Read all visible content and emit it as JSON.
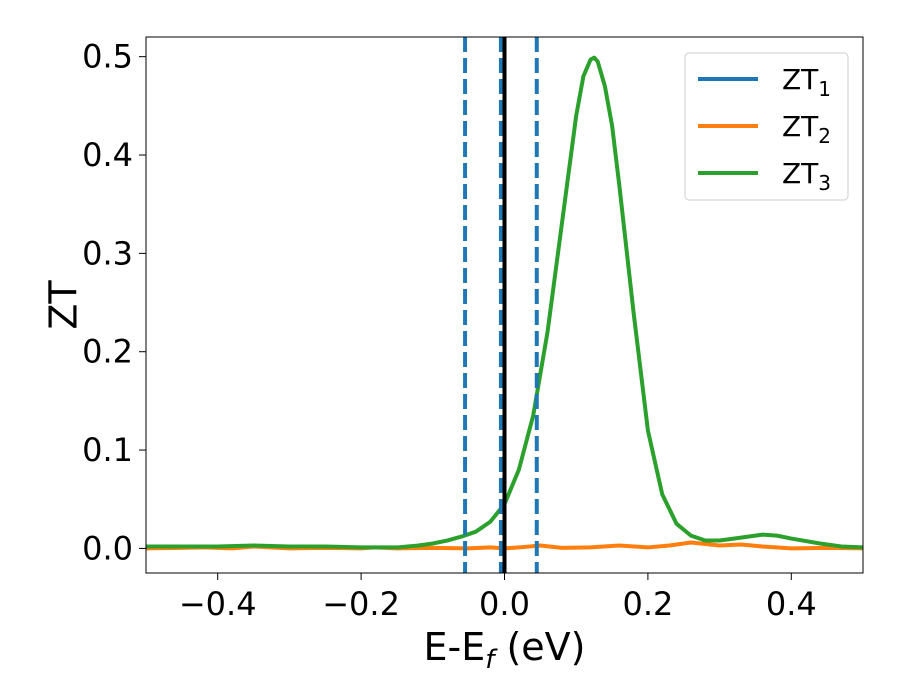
{
  "chart_data": {
    "type": "line",
    "xlabel": "E-E",
    "xlabel_sub": "f",
    "xlabel_unit": " (eV)",
    "ylabel": "ZT",
    "xlim": [
      -0.5,
      0.5
    ],
    "ylim": [
      -0.025,
      0.52
    ],
    "xticks": [
      -0.4,
      -0.2,
      0.0,
      0.2,
      0.4
    ],
    "xtick_labels": [
      "−0.4",
      "−0.2",
      "0.0",
      "0.2",
      "0.4"
    ],
    "yticks": [
      0.0,
      0.1,
      0.2,
      0.3,
      0.4,
      0.5
    ],
    "ytick_labels": [
      "0.0",
      "0.1",
      "0.2",
      "0.3",
      "0.4",
      "0.5"
    ],
    "grid": false,
    "legend_position": "top-right",
    "vertical_lines": [
      {
        "x": -0.055,
        "style": "dashed",
        "color": "#1f77b4"
      },
      {
        "x": -0.005,
        "style": "dashed",
        "color": "#1f77b4"
      },
      {
        "x": 0.045,
        "style": "dashed",
        "color": "#1f77b4"
      },
      {
        "x": 0.0,
        "style": "solid",
        "color": "#000000"
      }
    ],
    "series": [
      {
        "name": "ZT",
        "name_sub": "1",
        "color": "#1f77b4",
        "x": [],
        "y": []
      },
      {
        "name": "ZT",
        "name_sub": "2",
        "color": "#ff7f0e",
        "x": [
          -0.5,
          -0.45,
          -0.42,
          -0.38,
          -0.35,
          -0.3,
          -0.25,
          -0.2,
          -0.18,
          -0.15,
          -0.1,
          -0.05,
          -0.02,
          0.0,
          0.02,
          0.05,
          0.08,
          0.12,
          0.16,
          0.2,
          0.23,
          0.26,
          0.3,
          0.33,
          0.36,
          0.4,
          0.45,
          0.5
        ],
        "y": [
          0.0,
          0.0005,
          0.001,
          0.0,
          0.002,
          0.0,
          0.0005,
          0.0,
          0.001,
          0.0,
          0.0005,
          0.0,
          0.001,
          0.0,
          0.001,
          0.003,
          0.0005,
          0.001,
          0.003,
          0.001,
          0.003,
          0.006,
          0.003,
          0.004,
          0.002,
          0.0,
          0.0005,
          0.0
        ]
      },
      {
        "name": "ZT",
        "name_sub": "3",
        "color": "#2ca02c",
        "x": [
          -0.5,
          -0.45,
          -0.4,
          -0.35,
          -0.3,
          -0.25,
          -0.2,
          -0.15,
          -0.12,
          -0.1,
          -0.08,
          -0.06,
          -0.04,
          -0.02,
          0.0,
          0.02,
          0.04,
          0.06,
          0.08,
          0.1,
          0.11,
          0.12,
          0.125,
          0.13,
          0.14,
          0.15,
          0.16,
          0.18,
          0.2,
          0.22,
          0.24,
          0.26,
          0.28,
          0.3,
          0.33,
          0.36,
          0.38,
          0.4,
          0.44,
          0.47,
          0.5
        ],
        "y": [
          0.002,
          0.002,
          0.002,
          0.003,
          0.002,
          0.002,
          0.001,
          0.001,
          0.003,
          0.005,
          0.008,
          0.012,
          0.017,
          0.027,
          0.045,
          0.08,
          0.135,
          0.22,
          0.33,
          0.44,
          0.48,
          0.497,
          0.499,
          0.495,
          0.47,
          0.43,
          0.37,
          0.24,
          0.12,
          0.055,
          0.025,
          0.013,
          0.008,
          0.008,
          0.011,
          0.014,
          0.013,
          0.01,
          0.005,
          0.002,
          0.001
        ]
      }
    ]
  }
}
